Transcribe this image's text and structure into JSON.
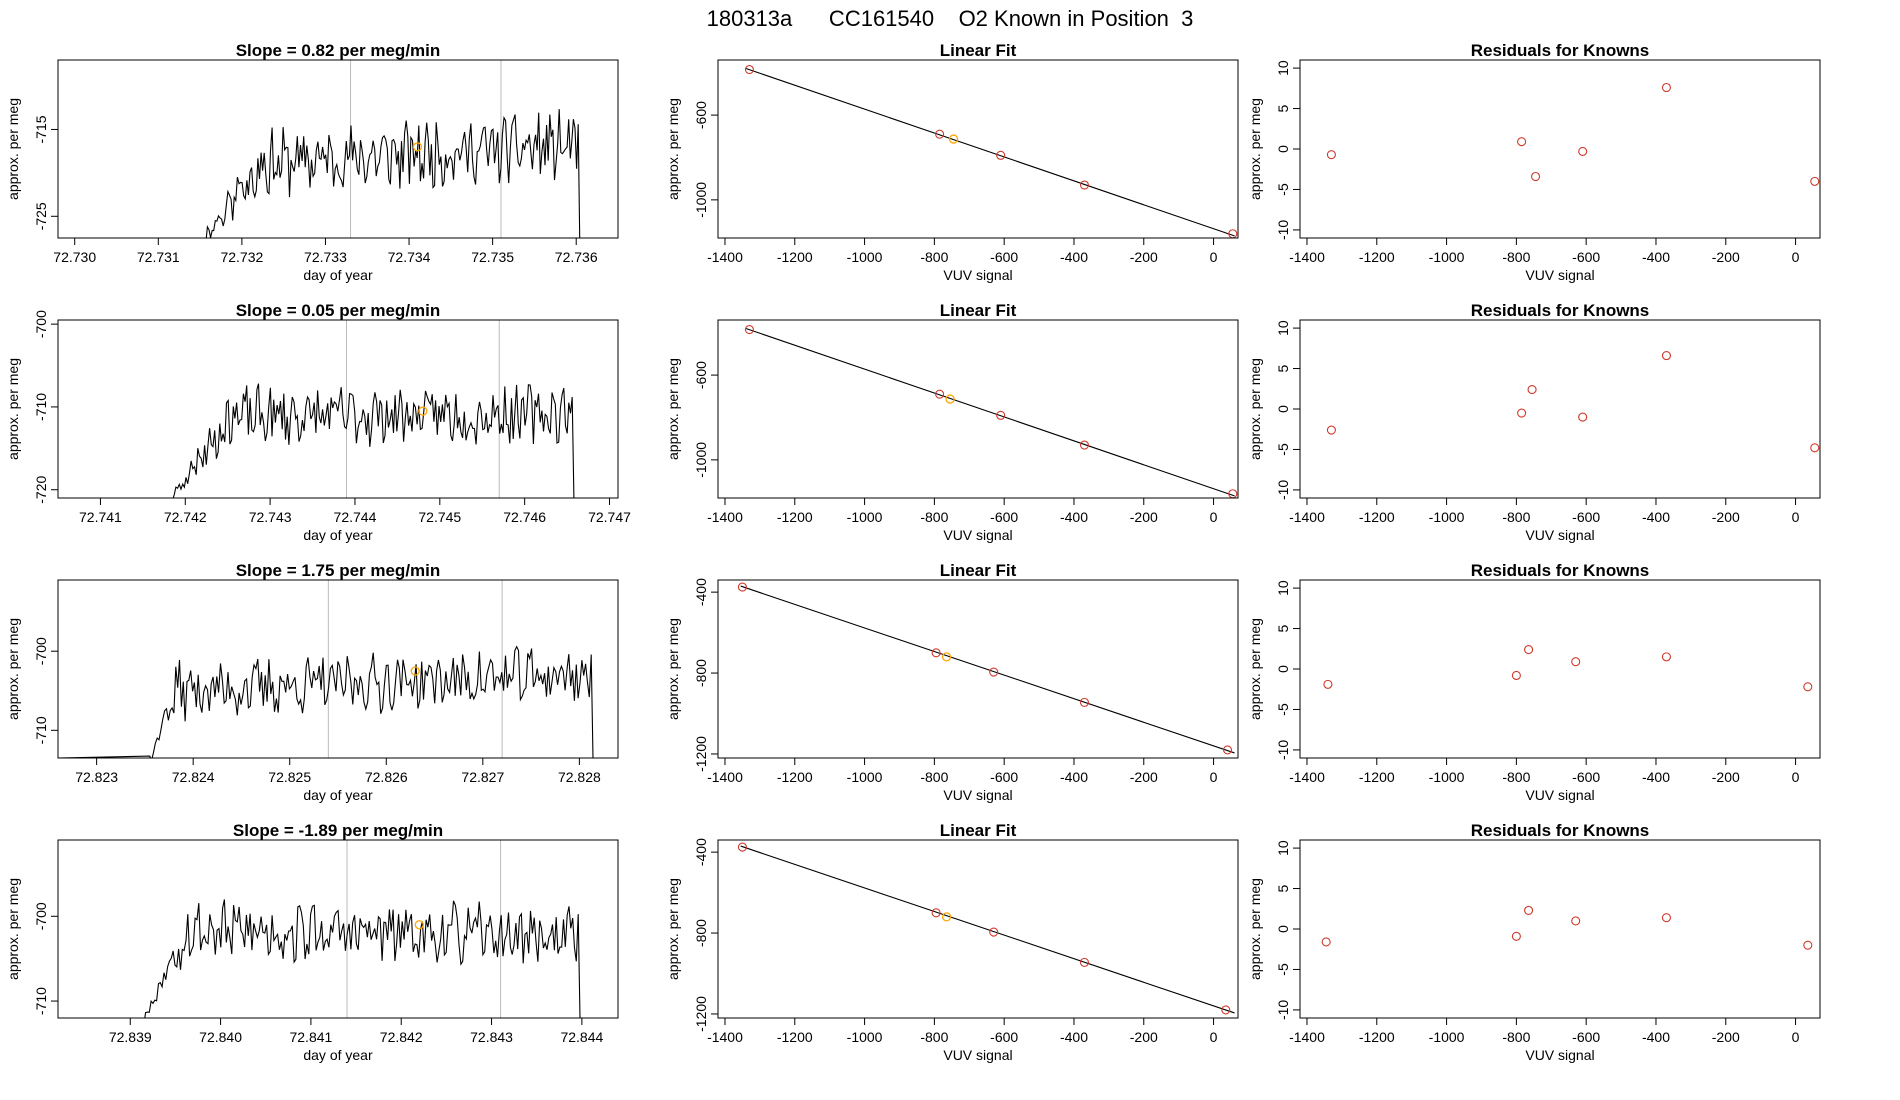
{
  "figure": {
    "title": "180313a      CC161540    O2 Known in Position  3"
  },
  "colors": {
    "trace": "#000000",
    "marker_orange": "#ffa500",
    "marker_red": "#d0392b",
    "vline": "#bbbbbb",
    "axis": "#000000"
  },
  "chart_data": [
    {
      "id": "r1-trace",
      "type": "line",
      "title": "Slope =  0.82  per meg/min",
      "xlabel": "day of year",
      "ylabel": "approx. per meg",
      "xlim": [
        72.7298,
        72.7365
      ],
      "ylim": [
        -727.5,
        -707
      ],
      "xticks": [
        72.73,
        72.731,
        72.732,
        72.733,
        72.734,
        72.735,
        72.736
      ],
      "xtick_labels": [
        "72.730",
        "72.731",
        "72.732",
        "72.733",
        "72.734",
        "72.735",
        "72.736"
      ],
      "yticks": [
        -715,
        -725
      ],
      "ytick_labels": [
        "-715",
        "-725"
      ],
      "vlines": [
        72.7333,
        72.7351
      ],
      "trace": {
        "x_start": 72.73155,
        "x_end": 72.73608,
        "rise_end": 72.7322,
        "base": -718,
        "low": -727.5,
        "amp": 3.2,
        "trend": 2.5,
        "end_drop": -727.5,
        "seed": 11,
        "n": 240
      },
      "highlight": [
        {
          "x": 72.7341,
          "y": -717
        }
      ]
    },
    {
      "id": "r1-fit",
      "type": "scatter-line",
      "title": "Linear Fit",
      "xlabel": "VUV signal",
      "ylabel": "approx. per meg",
      "xlim": [
        -1420,
        70
      ],
      "ylim": [
        -1180,
        -340
      ],
      "xticks": [
        -1400,
        -1200,
        -1000,
        -800,
        -600,
        -400,
        -200,
        0
      ],
      "xtick_labels": [
        "-1400",
        "-1200",
        "-1000",
        "-800",
        "-600",
        "-400",
        "-200",
        "0"
      ],
      "yticks": [
        -600,
        -1000
      ],
      "ytick_labels": [
        "-600",
        "-1000"
      ],
      "line": {
        "x": [
          -1340,
          60
        ],
        "y": [
          -380,
          -1170
        ]
      },
      "points": [
        {
          "x": -1330,
          "y": -385
        },
        {
          "x": -785,
          "y": -690
        },
        {
          "x": -610,
          "y": -790
        },
        {
          "x": -370,
          "y": -930
        },
        {
          "x": 55,
          "y": -1160
        }
      ],
      "highlight": [
        {
          "x": -745,
          "y": -713
        }
      ]
    },
    {
      "id": "r1-res",
      "type": "scatter",
      "title": "Residuals for Knowns",
      "xlabel": "VUV signal",
      "ylabel": "approx. per meg",
      "xlim": [
        -1420,
        70
      ],
      "ylim": [
        -11,
        11
      ],
      "xticks": [
        -1400,
        -1200,
        -1000,
        -800,
        -600,
        -400,
        -200,
        0
      ],
      "xtick_labels": [
        "-1400",
        "-1200",
        "-1000",
        "-800",
        "-600",
        "-400",
        "-200",
        "0"
      ],
      "yticks": [
        10,
        5,
        0,
        -5,
        -10
      ],
      "ytick_labels": [
        "10",
        "5",
        "0",
        "-5",
        "-10"
      ],
      "points": [
        {
          "x": -1330,
          "y": -0.7
        },
        {
          "x": -785,
          "y": 0.9
        },
        {
          "x": -745,
          "y": -3.4
        },
        {
          "x": -610,
          "y": -0.3
        },
        {
          "x": -370,
          "y": 7.6
        },
        {
          "x": 55,
          "y": -4
        }
      ]
    },
    {
      "id": "r2-trace",
      "type": "line",
      "title": "Slope =  0.05  per meg/min",
      "xlabel": "day of year",
      "ylabel": "approx. per meg",
      "xlim": [
        72.7405,
        72.7471
      ],
      "ylim": [
        -721,
        -699.5
      ],
      "xticks": [
        72.741,
        72.742,
        72.743,
        72.744,
        72.745,
        72.746,
        72.747
      ],
      "xtick_labels": [
        "72.741",
        "72.742",
        "72.743",
        "72.744",
        "72.745",
        "72.746",
        "72.747"
      ],
      "yticks": [
        -700,
        -710,
        -720
      ],
      "ytick_labels": [
        "-700",
        "-710",
        "-720"
      ],
      "vlines": [
        72.7439,
        72.7457
      ],
      "trace": {
        "x_start": 72.74185,
        "x_end": 72.74662,
        "rise_end": 72.7425,
        "base": -711,
        "low": -721,
        "amp": 3.0,
        "trend": 0.5,
        "end_drop": -721,
        "seed": 23,
        "n": 240
      },
      "highlight": [
        {
          "x": 72.7448,
          "y": -710.5
        }
      ]
    },
    {
      "id": "r2-fit",
      "type": "scatter-line",
      "title": "Linear Fit",
      "xlabel": "VUV signal",
      "ylabel": "approx. per meg",
      "xlim": [
        -1420,
        70
      ],
      "ylim": [
        -1180,
        -340
      ],
      "xticks": [
        -1400,
        -1200,
        -1000,
        -800,
        -600,
        -400,
        -200,
        0
      ],
      "xtick_labels": [
        "-1400",
        "-1200",
        "-1000",
        "-800",
        "-600",
        "-400",
        "-200",
        "0"
      ],
      "yticks": [
        -600,
        -1000
      ],
      "ytick_labels": [
        "-600",
        "-1000"
      ],
      "line": {
        "x": [
          -1340,
          60
        ],
        "y": [
          -380,
          -1170
        ]
      },
      "points": [
        {
          "x": -1330,
          "y": -385
        },
        {
          "x": -785,
          "y": -690
        },
        {
          "x": -610,
          "y": -790
        },
        {
          "x": -370,
          "y": -930
        },
        {
          "x": 55,
          "y": -1160
        }
      ],
      "highlight": [
        {
          "x": -755,
          "y": -713
        }
      ]
    },
    {
      "id": "r2-res",
      "type": "scatter",
      "title": "Residuals for Knowns",
      "xlabel": "VUV signal",
      "ylabel": "approx. per meg",
      "xlim": [
        -1420,
        70
      ],
      "ylim": [
        -11,
        11
      ],
      "xticks": [
        -1400,
        -1200,
        -1000,
        -800,
        -600,
        -400,
        -200,
        0
      ],
      "xtick_labels": [
        "-1400",
        "-1200",
        "-1000",
        "-800",
        "-600",
        "-400",
        "-200",
        "0"
      ],
      "yticks": [
        10,
        5,
        0,
        -5,
        -10
      ],
      "ytick_labels": [
        "10",
        "5",
        "0",
        "-5",
        "-10"
      ],
      "points": [
        {
          "x": -1330,
          "y": -2.6
        },
        {
          "x": -785,
          "y": -0.5
        },
        {
          "x": -755,
          "y": 2.4
        },
        {
          "x": -610,
          "y": -1.0
        },
        {
          "x": -370,
          "y": 6.6
        },
        {
          "x": 55,
          "y": -4.8
        }
      ]
    },
    {
      "id": "r3-trace",
      "type": "line",
      "title": "Slope =  1.75  per meg/min",
      "xlabel": "day of year",
      "ylabel": "approx. per meg",
      "xlim": [
        72.8226,
        72.8284
      ],
      "ylim": [
        -713.5,
        -691
      ],
      "xticks": [
        72.823,
        72.824,
        72.825,
        72.826,
        72.827,
        72.828
      ],
      "xtick_labels": [
        "72.823",
        "72.824",
        "72.825",
        "72.826",
        "72.827",
        "72.828"
      ],
      "yticks": [
        -700,
        -710
      ],
      "ytick_labels": [
        "-700",
        "-710"
      ],
      "vlines": [
        72.8254,
        72.8272
      ],
      "trace": {
        "x_start": 72.82355,
        "x_end": 72.82818,
        "rise_end": 72.8238,
        "base": -704,
        "low": -713.5,
        "amp": 3.0,
        "trend": 2.2,
        "end_drop": -713.5,
        "seed": 37,
        "n": 240
      },
      "highlight": [
        {
          "x": 72.8263,
          "y": -702.5
        }
      ]
    },
    {
      "id": "r3-fit",
      "type": "scatter-line",
      "title": "Linear Fit",
      "xlabel": "VUV signal",
      "ylabel": "approx. per meg",
      "xlim": [
        -1420,
        70
      ],
      "ylim": [
        -1220,
        -340
      ],
      "xticks": [
        -1400,
        -1200,
        -1000,
        -800,
        -600,
        -400,
        -200,
        0
      ],
      "xtick_labels": [
        "-1400",
        "-1200",
        "-1000",
        "-800",
        "-600",
        "-400",
        "-200",
        "0"
      ],
      "yticks": [
        -400,
        -800,
        -1200
      ],
      "ytick_labels": [
        "-400",
        "-800",
        "-1200"
      ],
      "line": {
        "x": [
          -1355,
          60
        ],
        "y": [
          -370,
          -1195
        ]
      },
      "points": [
        {
          "x": -1350,
          "y": -375
        },
        {
          "x": -795,
          "y": -700
        },
        {
          "x": -630,
          "y": -795
        },
        {
          "x": -370,
          "y": -945
        },
        {
          "x": 40,
          "y": -1180
        }
      ],
      "highlight": [
        {
          "x": -765,
          "y": -720
        }
      ]
    },
    {
      "id": "r3-res",
      "type": "scatter",
      "title": "Residuals for Knowns",
      "xlabel": "VUV signal",
      "ylabel": "approx. per meg",
      "xlim": [
        -1420,
        70
      ],
      "ylim": [
        -11,
        11
      ],
      "xticks": [
        -1400,
        -1200,
        -1000,
        -800,
        -600,
        -400,
        -200,
        0
      ],
      "xtick_labels": [
        "-1400",
        "-1200",
        "-1000",
        "-800",
        "-600",
        "-400",
        "-200",
        "0"
      ],
      "yticks": [
        10,
        5,
        0,
        -5,
        -10
      ],
      "ytick_labels": [
        "10",
        "5",
        "0",
        "-5",
        "-10"
      ],
      "points": [
        {
          "x": -1340,
          "y": -1.9
        },
        {
          "x": -800,
          "y": -0.8
        },
        {
          "x": -765,
          "y": 2.4
        },
        {
          "x": -630,
          "y": 0.9
        },
        {
          "x": -370,
          "y": 1.5
        },
        {
          "x": 35,
          "y": -2.2
        }
      ]
    },
    {
      "id": "r4-trace",
      "type": "line",
      "title": "Slope =  -1.89  per meg/min",
      "xlabel": "day of year",
      "ylabel": "approx. per meg",
      "xlim": [
        72.8382,
        72.8444
      ],
      "ylim": [
        -712,
        -691
      ],
      "xticks": [
        72.839,
        72.84,
        72.841,
        72.842,
        72.843,
        72.844
      ],
      "xtick_labels": [
        "72.839",
        "72.840",
        "72.841",
        "72.842",
        "72.843",
        "72.844"
      ],
      "yticks": [
        -700,
        -710
      ],
      "ytick_labels": [
        "-700",
        "-710"
      ],
      "vlines": [
        72.8414,
        72.8431
      ],
      "trace": {
        "x_start": 72.83915,
        "x_end": 72.84402,
        "rise_end": 72.8396,
        "base": -702,
        "low": -712,
        "amp": 3.0,
        "trend": -0.8,
        "end_drop": -712,
        "seed": 53,
        "n": 240
      },
      "highlight": [
        {
          "x": 72.8422,
          "y": -701
        }
      ]
    },
    {
      "id": "r4-fit",
      "type": "scatter-line",
      "title": "Linear Fit",
      "xlabel": "VUV signal",
      "ylabel": "approx. per meg",
      "xlim": [
        -1420,
        70
      ],
      "ylim": [
        -1220,
        -340
      ],
      "xticks": [
        -1400,
        -1200,
        -1000,
        -800,
        -600,
        -400,
        -200,
        0
      ],
      "xtick_labels": [
        "-1400",
        "-1200",
        "-1000",
        "-800",
        "-600",
        "-400",
        "-200",
        "0"
      ],
      "yticks": [
        -400,
        -800,
        -1200
      ],
      "ytick_labels": [
        "-400",
        "-800",
        "-1200"
      ],
      "line": {
        "x": [
          -1355,
          60
        ],
        "y": [
          -370,
          -1195
        ]
      },
      "points": [
        {
          "x": -1350,
          "y": -375
        },
        {
          "x": -795,
          "y": -700
        },
        {
          "x": -630,
          "y": -795
        },
        {
          "x": -370,
          "y": -945
        },
        {
          "x": 35,
          "y": -1180
        }
      ],
      "highlight": [
        {
          "x": -765,
          "y": -720
        }
      ]
    },
    {
      "id": "r4-res",
      "type": "scatter",
      "title": "Residuals for Knowns",
      "xlabel": "VUV signal",
      "ylabel": "approx. per meg",
      "xlim": [
        -1420,
        70
      ],
      "ylim": [
        -11,
        11
      ],
      "xticks": [
        -1400,
        -1200,
        -1000,
        -800,
        -600,
        -400,
        -200,
        0
      ],
      "xtick_labels": [
        "-1400",
        "-1200",
        "-1000",
        "-800",
        "-600",
        "-400",
        "-200",
        "0"
      ],
      "yticks": [
        10,
        5,
        0,
        -5,
        -10
      ],
      "ytick_labels": [
        "10",
        "5",
        "0",
        "-5",
        "-10"
      ],
      "points": [
        {
          "x": -1345,
          "y": -1.6
        },
        {
          "x": -800,
          "y": -0.9
        },
        {
          "x": -765,
          "y": 2.3
        },
        {
          "x": -630,
          "y": 1.0
        },
        {
          "x": -370,
          "y": 1.4
        },
        {
          "x": 35,
          "y": -2.0
        }
      ]
    }
  ]
}
